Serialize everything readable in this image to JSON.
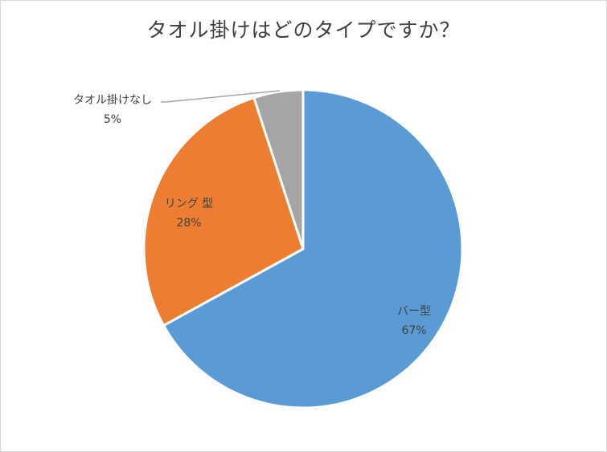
{
  "chart_data": {
    "type": "pie",
    "title": "タオル掛けはどのタイプですか？",
    "slices": [
      {
        "name": "バー型",
        "label_text": "バー型",
        "value": 67,
        "value_label": "67%",
        "color": "#5b9bd5"
      },
      {
        "name": "リング型",
        "label_text": "リング 型",
        "value": 28,
        "value_label": "28%",
        "color": "#ed7d31"
      },
      {
        "name": "タオル掛けなし",
        "label_text": "タオル掛けなし",
        "value": 5,
        "value_label": "5%",
        "color": "#a5a5a5"
      }
    ],
    "start_angle_deg": 0,
    "direction": "clockwise",
    "legend": "none"
  }
}
